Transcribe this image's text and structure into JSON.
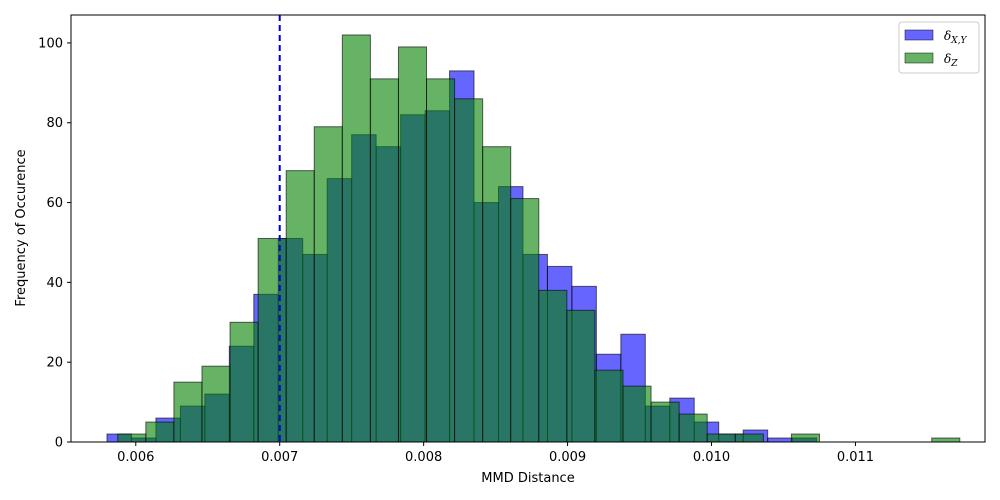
{
  "chart_data": {
    "type": "bar",
    "title": "",
    "xlabel": "MMD Distance",
    "ylabel": "Frequency of Occurence",
    "xlim": [
      0.00555,
      0.0119
    ],
    "ylim": [
      0,
      107
    ],
    "xticks": [
      0.006,
      0.007,
      0.008,
      0.009,
      0.01,
      0.011
    ],
    "xtick_labels": [
      "0.006",
      "0.007",
      "0.008",
      "0.009",
      "0.010",
      "0.011"
    ],
    "yticks": [
      0,
      20,
      40,
      60,
      80,
      100
    ],
    "ytick_labels": [
      "0",
      "20",
      "40",
      "60",
      "80",
      "100"
    ],
    "grid": false,
    "legend_position": "top-right",
    "threshold_line": {
      "x": 0.007,
      "style": "dashed",
      "color": "#0000cc"
    },
    "series": [
      {
        "name": "δX,Y",
        "label_main": "δ",
        "label_sub": "X,Y",
        "color": "#0000ff",
        "bin_width": 0.00017,
        "bin_starts": [
          0.0058,
          0.00597,
          0.00614,
          0.00631,
          0.00648,
          0.00665,
          0.00682,
          0.00699,
          0.00716,
          0.00733,
          0.0075,
          0.00767,
          0.00784,
          0.00801,
          0.00818,
          0.00835,
          0.00852,
          0.00869,
          0.00886,
          0.00903,
          0.0092,
          0.00937,
          0.00954,
          0.00971,
          0.00988,
          0.01005,
          0.01022,
          0.01039,
          0.01056
        ],
        "values": [
          2,
          1,
          6,
          9,
          12,
          24,
          37,
          51,
          47,
          66,
          77,
          74,
          82,
          83,
          93,
          60,
          64,
          47,
          44,
          39,
          22,
          27,
          9,
          11,
          5,
          2,
          3,
          1,
          1
        ]
      },
      {
        "name": "δZ",
        "label_main": "δ",
        "label_sub": "Z",
        "color": "#008000",
        "bin_width": 0.000195,
        "bin_starts": [
          0.005875,
          0.00607,
          0.006265,
          0.00646,
          0.006655,
          0.00685,
          0.007045,
          0.00724,
          0.007435,
          0.00763,
          0.007825,
          0.00802,
          0.008215,
          0.00841,
          0.008605,
          0.0088,
          0.008995,
          0.00919,
          0.009385,
          0.00958,
          0.009775,
          0.00997,
          0.010165,
          0.01036,
          0.010555,
          0.01075,
          0.010945,
          0.01114,
          0.011335,
          0.01153
        ],
        "values": [
          2,
          5,
          15,
          19,
          30,
          51,
          68,
          79,
          102,
          91,
          99,
          91,
          86,
          74,
          61,
          38,
          33,
          18,
          14,
          10,
          7,
          2,
          2,
          0,
          2,
          0,
          0,
          0,
          0,
          1
        ]
      }
    ]
  }
}
